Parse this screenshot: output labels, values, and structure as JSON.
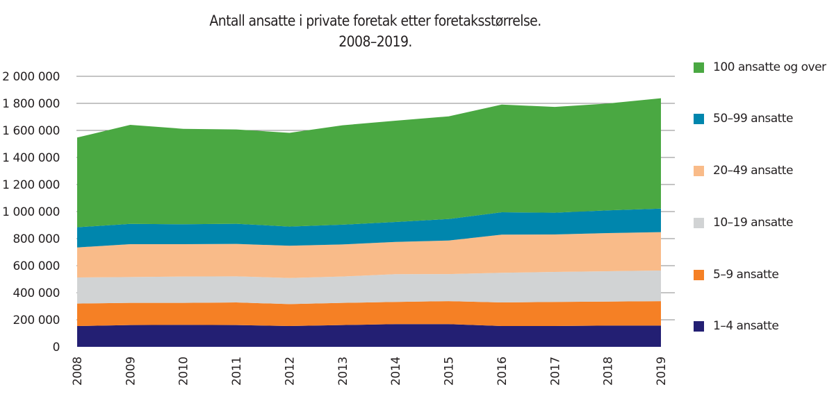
{
  "chart_data": {
    "type": "area",
    "stacked": true,
    "title": "Antall ansatte i private foretak etter foretaksstørrelse.",
    "subtitle": "2008–2019.",
    "xlabel": "",
    "ylabel": "",
    "ylim": [
      0,
      2000000
    ],
    "grid": true,
    "legend_position": "right",
    "categories": [
      "2008",
      "2009",
      "2010",
      "2011",
      "2012",
      "2013",
      "2014",
      "2015",
      "2016",
      "2017",
      "2018",
      "2019"
    ],
    "y_ticks": [
      0,
      200000,
      400000,
      600000,
      800000,
      1000000,
      1200000,
      1400000,
      1600000,
      1800000,
      2000000
    ],
    "y_tick_labels": [
      "0",
      "200 000",
      "400 000",
      "600 000",
      "800 000",
      "1 000 000",
      "1 200 000",
      "1 400 000",
      "1 600 000",
      "1 800 000",
      "2 000 000"
    ],
    "series": [
      {
        "name": "1–4 ansatte",
        "color": "#231f73",
        "values": [
          154000,
          161000,
          162000,
          161000,
          154000,
          161000,
          168000,
          168000,
          154000,
          154000,
          157000,
          157000
        ]
      },
      {
        "name": "5–9 ansatte",
        "color": "#f58025",
        "values": [
          166000,
          164000,
          163000,
          167000,
          162000,
          164000,
          164000,
          170000,
          174000,
          178000,
          178000,
          181000
        ]
      },
      {
        "name": "10–19 ansatte",
        "color": "#d1d3d4",
        "values": [
          193000,
          191000,
          195000,
          193000,
          193000,
          195000,
          205000,
          200000,
          219000,
          222000,
          224000,
          226000
        ]
      },
      {
        "name": "20–49 ansatte",
        "color": "#f9bb89",
        "values": [
          222000,
          243000,
          239000,
          240000,
          238000,
          237000,
          239000,
          248000,
          282000,
          277000,
          282000,
          284000
        ]
      },
      {
        "name": "50–99 ansatte",
        "color": "#0086ad",
        "values": [
          149000,
          150000,
          147000,
          149000,
          142000,
          146000,
          147000,
          159000,
          166000,
          161000,
          168000,
          174000
        ]
      },
      {
        "name": "100 ansatte og over",
        "color": "#4aa842",
        "values": [
          663000,
          732000,
          706000,
          697000,
          693000,
          735000,
          749000,
          759000,
          796000,
          782000,
          790000,
          816000
        ]
      }
    ]
  }
}
